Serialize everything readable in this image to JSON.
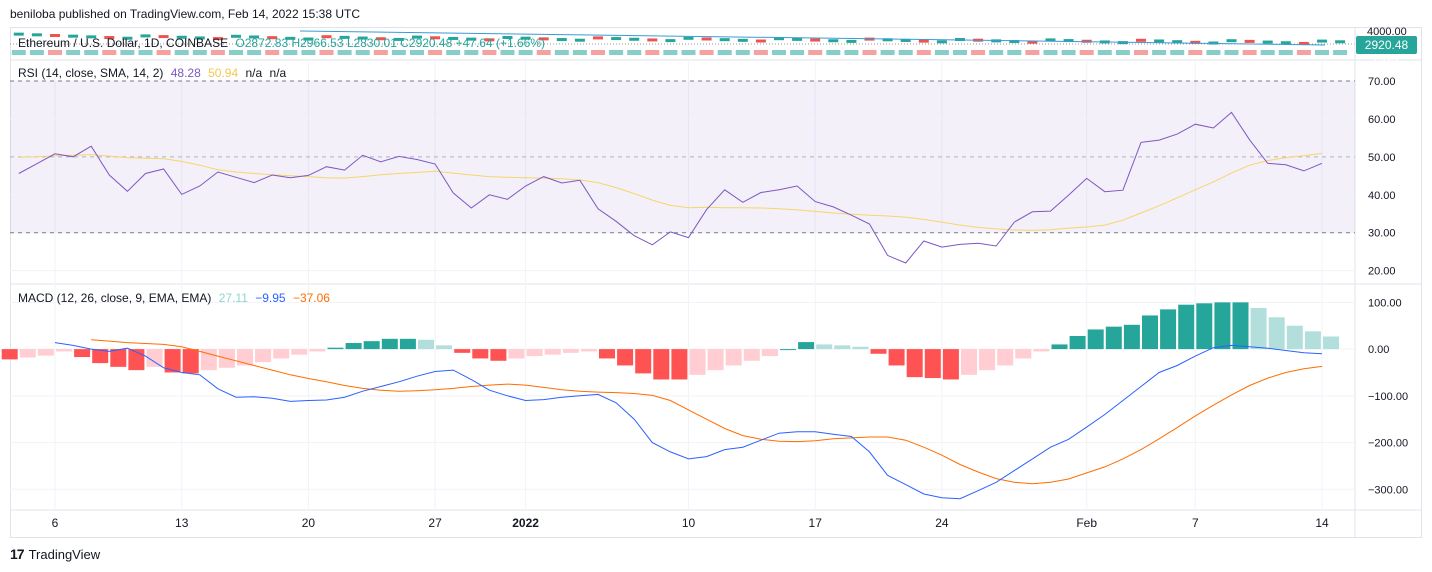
{
  "header": {
    "published": "beniloba published on TradingView.com, Feb 14, 2022 15:38 UTC"
  },
  "footer": {
    "brand": "TradingView",
    "logo_text": "17"
  },
  "price_panel": {
    "symbol": "Ethereum / U.S. Dollar, 1D, COINBASE",
    "ohlc": "O2872.83  H2966.53  L2830.01  C2920.48  +47.64 (+1.66%)",
    "top_tick": "4000.00",
    "currency_badge": "USD",
    "badge_value": "2920.48",
    "up_color": "#26a69a",
    "down_color": "#ef5350"
  },
  "rsi_panel": {
    "legend_name": "RSI (14, close, SMA, 14, 2)",
    "rsi_value": "48.28",
    "sma_value": "50.94",
    "na1": "n/a",
    "na2": "n/a",
    "rsi_color": "#7e57c2",
    "sma_color": "#f5d66b"
  },
  "macd_panel": {
    "legend_name": "MACD (12, 26, close, 9, EMA, EMA)",
    "hist_value": "27.11",
    "macd_value": "−9.95",
    "signal_value": "−37.06",
    "macd_color": "#2962ff",
    "signal_color": "#ff6d00"
  },
  "x_axis": {
    "ticks": [
      {
        "label": "6",
        "idx": 0
      },
      {
        "label": "13",
        "idx": 7
      },
      {
        "label": "20",
        "idx": 14
      },
      {
        "label": "27",
        "idx": 21
      },
      {
        "label": "2022",
        "idx": 26
      },
      {
        "label": "10",
        "idx": 35
      },
      {
        "label": "17",
        "idx": 42
      },
      {
        "label": "24",
        "idx": 49
      },
      {
        "label": "Feb",
        "idx": 57
      },
      {
        "label": "7",
        "idx": 63
      },
      {
        "label": "14",
        "idx": 70
      }
    ]
  },
  "chart_data": [
    {
      "type": "line",
      "title": "RSI (14, close, SMA, 14, 2)",
      "ylim": [
        17,
        75
      ],
      "y_ticks": [
        "70.00",
        "60.00",
        "50.00",
        "40.00",
        "30.00",
        "20.00"
      ],
      "y_tick_values": [
        70,
        60,
        50,
        40,
        30,
        20
      ],
      "band": [
        30,
        70
      ],
      "midline": 50,
      "grid": true,
      "series": [
        {
          "name": "RSI",
          "values": [
            45.6,
            48.2,
            50.8,
            50.0,
            52.8,
            45.2,
            40.9,
            45.6,
            46.8,
            40.1,
            42.3,
            46.0,
            44.6,
            43.2,
            45.2,
            44.5,
            45.1,
            47.4,
            46.5,
            50.4,
            48.7,
            50.1,
            49.3,
            48.1,
            40.5,
            36.5,
            40.0,
            38.8,
            42.3,
            44.8,
            43.1,
            43.8,
            36.3,
            33.0,
            29.2,
            26.8,
            30.2,
            28.7,
            36.1,
            41.3,
            38.0,
            40.6,
            41.3,
            42.3,
            38.2,
            36.8,
            34.6,
            32.3,
            24.0,
            22.0,
            27.8,
            26.2,
            26.9,
            27.2,
            26.5,
            32.8,
            35.5,
            35.7,
            39.9,
            44.3,
            40.8,
            41.2,
            53.8,
            54.4,
            56.0,
            58.6,
            57.6,
            61.7,
            54.5,
            48.3,
            47.9,
            46.3,
            48.3
          ]
        },
        {
          "name": "SMA",
          "values": [
            49.9,
            50.0,
            50.3,
            50.4,
            50.6,
            50.2,
            49.8,
            49.6,
            49.5,
            48.8,
            47.8,
            46.6,
            46.0,
            45.6,
            45.3,
            45.0,
            44.8,
            44.5,
            44.4,
            44.8,
            45.3,
            45.6,
            45.9,
            46.2,
            45.7,
            45.2,
            44.8,
            44.6,
            44.5,
            44.4,
            44.2,
            43.9,
            43.2,
            41.9,
            40.3,
            38.6,
            37.2,
            36.6,
            36.7,
            36.6,
            36.6,
            36.5,
            36.3,
            36.0,
            35.6,
            35.2,
            34.9,
            34.6,
            34.4,
            34.1,
            33.5,
            32.8,
            32.0,
            31.4,
            31.0,
            30.7,
            30.6,
            30.8,
            31.2,
            31.5,
            32.0,
            33.3,
            35.2,
            37.1,
            39.2,
            41.3,
            43.4,
            45.7,
            47.8,
            49.0,
            49.8,
            50.3,
            50.9
          ]
        }
      ]
    },
    {
      "type": "bar",
      "title": "MACD (12, 26, close, 9, EMA, EMA)",
      "ylim": [
        -340,
        135
      ],
      "y_ticks": [
        "100.00",
        "0.00",
        "−100.00",
        "−200.00",
        "−300.00"
      ],
      "y_tick_values": [
        100,
        0,
        -100,
        -200,
        -300
      ],
      "grid": true,
      "histogram": [
        -18,
        -22,
        -18,
        -14,
        -5,
        -17,
        -30,
        -38,
        -45,
        -38,
        -50,
        -52,
        -45,
        -40,
        -35,
        -28,
        -20,
        -12,
        -5,
        3,
        13,
        17,
        22,
        22,
        20,
        8,
        -8,
        -20,
        -25,
        -20,
        -15,
        -12,
        -8,
        -5,
        -20,
        -35,
        -52,
        -65,
        -65,
        -55,
        -45,
        -35,
        -25,
        -15,
        0,
        15,
        10,
        8,
        5,
        -10,
        -35,
        -60,
        -62,
        -65,
        -55,
        -45,
        -35,
        -20,
        -5,
        10,
        28,
        42,
        48,
        52,
        72,
        85,
        95,
        98,
        100,
        100,
        88,
        68,
        50,
        38,
        27
      ],
      "series": [
        {
          "name": "MACD",
          "values": [
            14,
            8,
            0,
            -5,
            2,
            -15,
            -40,
            -50,
            -55,
            -85,
            -103,
            -102,
            -105,
            -112,
            -110,
            -109,
            -103,
            -90,
            -80,
            -70,
            -58,
            -48,
            -45,
            -65,
            -88,
            -100,
            -110,
            -108,
            -103,
            -100,
            -97,
            -115,
            -150,
            -200,
            -220,
            -235,
            -230,
            -215,
            -210,
            -195,
            -180,
            -177,
            -177,
            -182,
            -187,
            -220,
            -270,
            -290,
            -310,
            -318,
            -320,
            -303,
            -285,
            -260,
            -235,
            -210,
            -193,
            -167,
            -140,
            -110,
            -80,
            -50,
            -35,
            -15,
            3,
            8,
            5,
            2,
            -3,
            -8,
            -10
          ]
        },
        {
          "name": "Signal",
          "values": [
            20,
            17,
            14,
            12,
            10,
            5,
            -5,
            -15,
            -25,
            -35,
            -45,
            -55,
            -63,
            -70,
            -78,
            -84,
            -88,
            -90,
            -89,
            -87,
            -84,
            -80,
            -77,
            -75,
            -77,
            -82,
            -87,
            -90,
            -92,
            -93,
            -95,
            -99,
            -110,
            -130,
            -150,
            -170,
            -185,
            -193,
            -197,
            -198,
            -196,
            -192,
            -190,
            -188,
            -188,
            -195,
            -210,
            -227,
            -247,
            -263,
            -277,
            -285,
            -288,
            -285,
            -278,
            -265,
            -252,
            -235,
            -215,
            -192,
            -168,
            -143,
            -120,
            -98,
            -78,
            -62,
            -50,
            -42,
            -37
          ]
        }
      ]
    }
  ]
}
